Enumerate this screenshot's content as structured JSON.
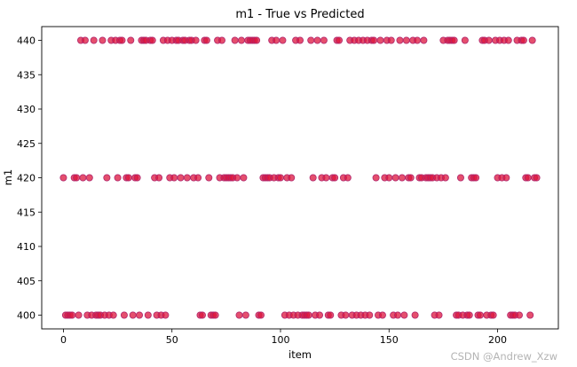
{
  "chart_data": {
    "type": "scatter",
    "title": "m1 - True vs Predicted",
    "xlabel": "item",
    "ylabel": "m1",
    "xlim": [
      -10,
      228
    ],
    "ylim": [
      398,
      442
    ],
    "xticks": [
      0,
      50,
      100,
      150,
      200
    ],
    "yticks": [
      400,
      405,
      410,
      415,
      420,
      425,
      430,
      435,
      440
    ],
    "grid": false,
    "marker_color": "#dc143c",
    "marker_edge_color": "#b0246b",
    "points": [
      [
        0,
        420
      ],
      [
        1,
        400
      ],
      [
        2,
        400
      ],
      [
        3,
        400
      ],
      [
        4,
        400
      ],
      [
        5,
        420
      ],
      [
        6,
        420
      ],
      [
        7,
        400
      ],
      [
        8,
        440
      ],
      [
        9,
        420
      ],
      [
        10,
        440
      ],
      [
        11,
        400
      ],
      [
        12,
        420
      ],
      [
        13,
        400
      ],
      [
        14,
        440
      ],
      [
        15,
        400
      ],
      [
        16,
        400
      ],
      [
        17,
        400
      ],
      [
        18,
        440
      ],
      [
        19,
        400
      ],
      [
        20,
        420
      ],
      [
        21,
        400
      ],
      [
        22,
        440
      ],
      [
        23,
        400
      ],
      [
        24,
        440
      ],
      [
        25,
        420
      ],
      [
        26,
        440
      ],
      [
        27,
        440
      ],
      [
        28,
        400
      ],
      [
        29,
        420
      ],
      [
        30,
        420
      ],
      [
        31,
        440
      ],
      [
        32,
        400
      ],
      [
        33,
        420
      ],
      [
        34,
        420
      ],
      [
        35,
        400
      ],
      [
        36,
        440
      ],
      [
        37,
        440
      ],
      [
        38,
        440
      ],
      [
        39,
        400
      ],
      [
        40,
        440
      ],
      [
        41,
        440
      ],
      [
        42,
        420
      ],
      [
        43,
        400
      ],
      [
        44,
        420
      ],
      [
        45,
        400
      ],
      [
        46,
        440
      ],
      [
        47,
        400
      ],
      [
        48,
        440
      ],
      [
        49,
        420
      ],
      [
        50,
        440
      ],
      [
        51,
        420
      ],
      [
        52,
        440
      ],
      [
        53,
        440
      ],
      [
        54,
        420
      ],
      [
        55,
        440
      ],
      [
        56,
        440
      ],
      [
        57,
        420
      ],
      [
        58,
        440
      ],
      [
        59,
        440
      ],
      [
        60,
        420
      ],
      [
        61,
        440
      ],
      [
        62,
        420
      ],
      [
        63,
        400
      ],
      [
        64,
        400
      ],
      [
        65,
        440
      ],
      [
        66,
        440
      ],
      [
        67,
        420
      ],
      [
        68,
        400
      ],
      [
        69,
        400
      ],
      [
        70,
        400
      ],
      [
        71,
        440
      ],
      [
        72,
        420
      ],
      [
        73,
        440
      ],
      [
        74,
        420
      ],
      [
        75,
        420
      ],
      [
        76,
        420
      ],
      [
        77,
        420
      ],
      [
        78,
        420
      ],
      [
        79,
        440
      ],
      [
        80,
        420
      ],
      [
        81,
        400
      ],
      [
        82,
        440
      ],
      [
        83,
        420
      ],
      [
        84,
        400
      ],
      [
        85,
        440
      ],
      [
        86,
        440
      ],
      [
        87,
        440
      ],
      [
        88,
        440
      ],
      [
        89,
        440
      ],
      [
        90,
        400
      ],
      [
        91,
        400
      ],
      [
        92,
        420
      ],
      [
        93,
        420
      ],
      [
        94,
        420
      ],
      [
        95,
        420
      ],
      [
        96,
        440
      ],
      [
        97,
        420
      ],
      [
        98,
        440
      ],
      [
        99,
        420
      ],
      [
        100,
        420
      ],
      [
        101,
        440
      ],
      [
        102,
        400
      ],
      [
        103,
        420
      ],
      [
        104,
        400
      ],
      [
        105,
        420
      ],
      [
        106,
        400
      ],
      [
        107,
        440
      ],
      [
        108,
        400
      ],
      [
        109,
        440
      ],
      [
        110,
        400
      ],
      [
        111,
        400
      ],
      [
        112,
        400
      ],
      [
        113,
        400
      ],
      [
        114,
        440
      ],
      [
        115,
        420
      ],
      [
        116,
        400
      ],
      [
        117,
        440
      ],
      [
        118,
        400
      ],
      [
        119,
        420
      ],
      [
        120,
        440
      ],
      [
        121,
        420
      ],
      [
        122,
        400
      ],
      [
        123,
        400
      ],
      [
        124,
        420
      ],
      [
        125,
        420
      ],
      [
        126,
        440
      ],
      [
        127,
        440
      ],
      [
        128,
        400
      ],
      [
        129,
        420
      ],
      [
        130,
        400
      ],
      [
        131,
        420
      ],
      [
        132,
        440
      ],
      [
        133,
        400
      ],
      [
        134,
        440
      ],
      [
        135,
        400
      ],
      [
        136,
        440
      ],
      [
        137,
        400
      ],
      [
        138,
        440
      ],
      [
        139,
        400
      ],
      [
        140,
        440
      ],
      [
        141,
        400
      ],
      [
        142,
        440
      ],
      [
        143,
        440
      ],
      [
        144,
        420
      ],
      [
        145,
        400
      ],
      [
        146,
        440
      ],
      [
        147,
        400
      ],
      [
        148,
        420
      ],
      [
        149,
        440
      ],
      [
        150,
        420
      ],
      [
        151,
        440
      ],
      [
        152,
        400
      ],
      [
        153,
        420
      ],
      [
        154,
        400
      ],
      [
        155,
        440
      ],
      [
        156,
        420
      ],
      [
        157,
        400
      ],
      [
        158,
        440
      ],
      [
        159,
        420
      ],
      [
        160,
        420
      ],
      [
        161,
        440
      ],
      [
        162,
        400
      ],
      [
        163,
        440
      ],
      [
        164,
        420
      ],
      [
        165,
        420
      ],
      [
        166,
        440
      ],
      [
        167,
        420
      ],
      [
        168,
        420
      ],
      [
        169,
        420
      ],
      [
        170,
        420
      ],
      [
        171,
        400
      ],
      [
        172,
        420
      ],
      [
        173,
        400
      ],
      [
        174,
        420
      ],
      [
        175,
        440
      ],
      [
        176,
        420
      ],
      [
        177,
        440
      ],
      [
        178,
        440
      ],
      [
        179,
        440
      ],
      [
        180,
        440
      ],
      [
        181,
        400
      ],
      [
        182,
        400
      ],
      [
        183,
        420
      ],
      [
        184,
        400
      ],
      [
        185,
        440
      ],
      [
        186,
        400
      ],
      [
        187,
        400
      ],
      [
        188,
        420
      ],
      [
        189,
        420
      ],
      [
        190,
        420
      ],
      [
        191,
        400
      ],
      [
        192,
        400
      ],
      [
        193,
        440
      ],
      [
        194,
        440
      ],
      [
        195,
        400
      ],
      [
        196,
        440
      ],
      [
        197,
        400
      ],
      [
        198,
        400
      ],
      [
        199,
        440
      ],
      [
        200,
        420
      ],
      [
        201,
        440
      ],
      [
        202,
        420
      ],
      [
        203,
        440
      ],
      [
        204,
        420
      ],
      [
        205,
        440
      ],
      [
        206,
        400
      ],
      [
        207,
        400
      ],
      [
        208,
        400
      ],
      [
        209,
        440
      ],
      [
        210,
        400
      ],
      [
        211,
        440
      ],
      [
        212,
        440
      ],
      [
        213,
        420
      ],
      [
        214,
        420
      ],
      [
        215,
        400
      ],
      [
        216,
        440
      ],
      [
        217,
        420
      ],
      [
        218,
        420
      ]
    ]
  },
  "watermark": "CSDN @Andrew_Xzw"
}
